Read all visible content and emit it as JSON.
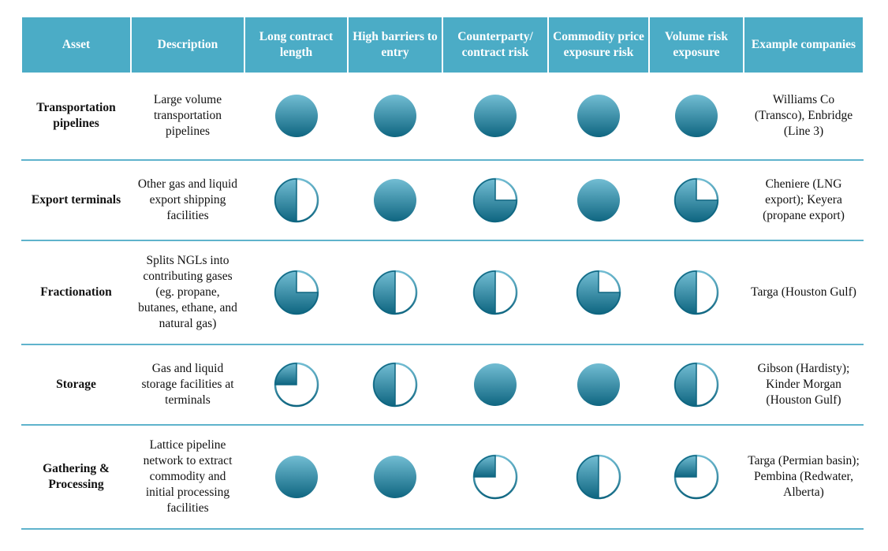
{
  "colors": {
    "header": "#4bacc6",
    "ball_light": "#72bdd3",
    "ball_dark": "#0f6681",
    "divider": "#5fb3cc"
  },
  "headers": [
    "Asset",
    "Description",
    "Long contract length",
    "High barriers to entry",
    "Counterparty/ contract risk",
    "Commodity price exposure risk",
    "Volume risk exposure",
    "Example companies"
  ],
  "rows": [
    {
      "asset": "Transportation pipelines",
      "description": "Large volume transportation pipelines",
      "ratings": [
        1,
        1,
        1,
        1,
        1
      ],
      "examples": "Williams Co (Transco), Enbridge (Line 3)"
    },
    {
      "asset": "Export terminals",
      "description": "Other gas and liquid export shipping facilities",
      "ratings": [
        0.5,
        1,
        0.75,
        1,
        0.75
      ],
      "examples": "Cheniere (LNG export); Keyera (propane export)"
    },
    {
      "asset": "Fractionation",
      "description": "Splits NGLs into contributing gases (eg. propane, butanes, ethane, and natural gas)",
      "ratings": [
        0.75,
        0.5,
        0.5,
        0.75,
        0.5
      ],
      "examples": "Targa (Houston Gulf)"
    },
    {
      "asset": "Storage",
      "description": "Gas and liquid storage facilities at terminals",
      "ratings": [
        0.25,
        0.5,
        1,
        1,
        0.5
      ],
      "examples": "Gibson (Hardisty); Kinder Morgan (Houston Gulf)"
    },
    {
      "asset": "Gathering & Processing",
      "description": "Lattice pipeline network to extract commodity and initial processing facilities",
      "ratings": [
        1,
        1,
        0.25,
        0.5,
        0.25
      ],
      "examples": "Targa (Permian basin); Pembina (Redwater, Alberta)"
    }
  ]
}
